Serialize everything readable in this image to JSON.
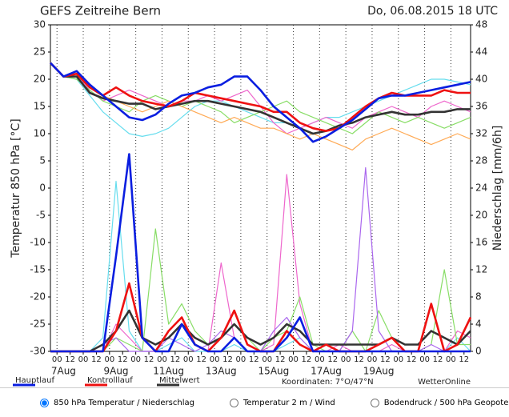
{
  "chart_data": {
    "type": "line",
    "title": "GEFS Zeitreihe Bern",
    "subtitle": "Do, 06.08.2015 18 UTC",
    "ylabel": "Temperatur 850 hPa [°C]",
    "y2label": "Niederschlag [mm/6h]",
    "coordinates": "Koordinaten: 7°O/47°N",
    "source": "WetterOnline",
    "x": [
      0,
      12,
      24,
      36,
      48,
      60,
      72,
      84,
      96,
      108,
      120,
      132,
      144,
      156,
      168,
      180,
      192,
      204,
      216,
      228,
      240,
      252,
      264,
      276,
      288,
      300,
      312,
      324,
      336,
      348,
      360,
      372,
      384
    ],
    "xlim": [
      0,
      384
    ],
    "xticks": [
      {
        "value": 6,
        "label": "00"
      },
      {
        "value": 18,
        "label": "12"
      },
      {
        "value": 30,
        "label": "00"
      },
      {
        "value": 42,
        "label": "12"
      },
      {
        "value": 54,
        "label": "00"
      },
      {
        "value": 66,
        "label": "12"
      },
      {
        "value": 78,
        "label": "00"
      },
      {
        "value": 90,
        "label": "12"
      },
      {
        "value": 102,
        "label": "00"
      },
      {
        "value": 114,
        "label": "12"
      },
      {
        "value": 126,
        "label": "00"
      },
      {
        "value": 138,
        "label": "12"
      },
      {
        "value": 150,
        "label": "00"
      },
      {
        "value": 162,
        "label": "12"
      },
      {
        "value": 174,
        "label": "00"
      },
      {
        "value": 186,
        "label": "12"
      },
      {
        "value": 198,
        "label": "00"
      },
      {
        "value": 210,
        "label": "12"
      },
      {
        "value": 222,
        "label": "00"
      },
      {
        "value": 234,
        "label": "12"
      },
      {
        "value": 246,
        "label": "00"
      },
      {
        "value": 258,
        "label": "12"
      },
      {
        "value": 270,
        "label": "00"
      },
      {
        "value": 282,
        "label": "12"
      },
      {
        "value": 294,
        "label": "00"
      },
      {
        "value": 306,
        "label": "12"
      },
      {
        "value": 318,
        "label": "00"
      },
      {
        "value": 330,
        "label": "12"
      },
      {
        "value": 342,
        "label": "00"
      },
      {
        "value": 354,
        "label": "12"
      },
      {
        "value": 366,
        "label": "00"
      },
      {
        "value": 378,
        "label": "12"
      }
    ],
    "day_labels": [
      {
        "value": 12,
        "label": "7Aug"
      },
      {
        "value": 60,
        "label": "9Aug"
      },
      {
        "value": 108,
        "label": "11Aug"
      },
      {
        "value": 156,
        "label": "13Aug"
      },
      {
        "value": 204,
        "label": "15Aug"
      },
      {
        "value": 252,
        "label": "17Aug"
      },
      {
        "value": 300,
        "label": "19Aug"
      }
    ],
    "ylim": [
      -30,
      30
    ],
    "yticks": [
      -30,
      -25,
      -20,
      -15,
      -10,
      -5,
      0,
      5,
      10,
      15,
      20,
      25,
      30
    ],
    "y2lim": [
      0,
      48
    ],
    "y2ticks": [
      0,
      4,
      8,
      12,
      16,
      20,
      24,
      28,
      32,
      36,
      40,
      44,
      48
    ],
    "grid": true,
    "series": [
      {
        "color": "#66ddee",
        "values": [
          23,
          20.5,
          20,
          17,
          14,
          12,
          10,
          9.5,
          10,
          11,
          13,
          15,
          16,
          16,
          15,
          14,
          13,
          12,
          12,
          11,
          12,
          13,
          13,
          14,
          15,
          16,
          17,
          18,
          19,
          20,
          20,
          19.5,
          19
        ]
      },
      {
        "color": "#ee66cc",
        "values": [
          23,
          20.5,
          21,
          18,
          16,
          17,
          18,
          17,
          16,
          15,
          16,
          16,
          17,
          16,
          17,
          18,
          15,
          12,
          10,
          11,
          12,
          13,
          12,
          11,
          13,
          14,
          15,
          14,
          13,
          15,
          16,
          15,
          14
        ]
      },
      {
        "color": "#88dd66",
        "values": [
          23,
          20.5,
          20,
          18,
          16,
          15,
          14,
          16,
          17,
          16,
          15,
          16,
          15,
          14,
          12,
          13,
          14,
          15,
          16,
          14,
          13,
          12,
          11,
          10,
          12,
          14,
          13,
          12,
          13,
          12,
          11,
          12,
          13
        ]
      },
      {
        "color": "#ffaa55",
        "values": [
          23,
          20.5,
          21,
          19,
          17,
          16,
          15,
          14,
          15,
          16,
          15,
          14,
          13,
          12,
          13,
          12,
          11,
          11,
          10,
          9,
          10,
          9,
          8,
          7,
          9,
          10,
          11,
          10,
          9,
          8,
          9,
          10,
          9
        ]
      },
      {
        "color": "#66ddee",
        "axis": "y2",
        "values": [
          0,
          0,
          0,
          0,
          2,
          25,
          3,
          0,
          0,
          1,
          2,
          0,
          0,
          0,
          1,
          0,
          0,
          0,
          1,
          2,
          0,
          0,
          0,
          0,
          0,
          0,
          0,
          0,
          0,
          0,
          0,
          2,
          0
        ]
      },
      {
        "color": "#ee66cc",
        "axis": "y2",
        "values": [
          0,
          0,
          0,
          0,
          0,
          4,
          2,
          0,
          0,
          3,
          5,
          1,
          0,
          13,
          2,
          0,
          0,
          1,
          26,
          7,
          0,
          0,
          1,
          0,
          0,
          0,
          1,
          0,
          0,
          0,
          0,
          3,
          2
        ]
      },
      {
        "color": "#88dd66",
        "axis": "y2",
        "values": [
          0,
          0,
          0,
          0,
          0,
          2,
          1,
          0,
          18,
          4,
          7,
          3,
          1,
          2,
          4,
          2,
          0,
          2,
          3,
          8,
          1,
          0,
          0,
          3,
          0,
          6,
          2,
          0,
          0,
          1,
          12,
          1,
          1
        ]
      },
      {
        "color": "#aa66ee",
        "axis": "y2",
        "values": [
          0,
          0,
          0,
          0,
          1,
          2,
          0,
          0,
          0,
          2,
          1,
          0,
          1,
          3,
          2,
          0,
          0,
          3,
          5,
          2,
          0,
          0,
          0,
          3,
          27,
          3,
          0,
          0,
          0,
          1,
          0,
          0,
          0
        ]
      },
      {
        "color": "#333333",
        "axis": "y2",
        "values": [
          0,
          0,
          0,
          0,
          1,
          3,
          6,
          2,
          1,
          2,
          4,
          2,
          1,
          2,
          4,
          2,
          1,
          2,
          4,
          3,
          1,
          1,
          1,
          1,
          1,
          1,
          2,
          1,
          1,
          3,
          2,
          1,
          3
        ]
      },
      {
        "color": "#ee1111",
        "axis": "y2",
        "values": [
          0,
          0,
          0,
          0,
          0,
          3,
          10,
          2,
          0,
          3,
          5,
          1,
          0,
          2,
          6,
          1,
          0,
          0,
          3,
          1,
          0,
          1,
          0,
          0,
          0,
          1,
          2,
          0,
          0,
          7,
          0,
          1,
          5
        ]
      },
      {
        "color": "#0a1ee0",
        "axis": "y2",
        "values": [
          0,
          0,
          0,
          0,
          0,
          14,
          29,
          2,
          0,
          0,
          4,
          1,
          0,
          0,
          2,
          0,
          0,
          0,
          2,
          5,
          0,
          0,
          0,
          0,
          0,
          0,
          0,
          0,
          0,
          0,
          0,
          0,
          0
        ]
      },
      {
        "name": "Mittelwert",
        "color": "#333333",
        "values": [
          23,
          20.5,
          20.5,
          17.5,
          16.5,
          16,
          15.5,
          15.5,
          14.5,
          15,
          15.5,
          16,
          16,
          15.5,
          15,
          14.5,
          14,
          13,
          12,
          11,
          10,
          10.5,
          11.5,
          12,
          13,
          13.5,
          14,
          13.5,
          13.5,
          14,
          14,
          14.5,
          14.5
        ]
      },
      {
        "name": "Kontrolllauf",
        "color": "#ee1111",
        "values": [
          23,
          20.5,
          21,
          18.5,
          17,
          18.5,
          17,
          16,
          15.5,
          15,
          16,
          17.5,
          17,
          16.5,
          16,
          15.5,
          15,
          14,
          14,
          12,
          11,
          10.5,
          11,
          13,
          15,
          16.5,
          17.5,
          17,
          17,
          17,
          18,
          17.5,
          17.5
        ]
      },
      {
        "name": "Hauptlauf",
        "color": "#0a1ee0",
        "values": [
          23,
          20.5,
          21.5,
          19,
          17,
          15,
          13,
          12.5,
          13.5,
          15.5,
          17,
          17.5,
          18.5,
          19,
          20.5,
          20.5,
          18,
          15,
          13,
          11,
          8.5,
          9.5,
          11,
          12.5,
          14.5,
          16.5,
          17,
          17,
          17.5,
          18,
          18.5,
          19,
          19.5
        ]
      }
    ]
  },
  "options": [
    {
      "label": "850 hPa Temperatur / Niederschlag",
      "selected": true
    },
    {
      "label": "Temperatur 2 m / Wind",
      "selected": false
    },
    {
      "label": "Bodendruck / 500 hPa Geopotential",
      "selected": false
    }
  ]
}
